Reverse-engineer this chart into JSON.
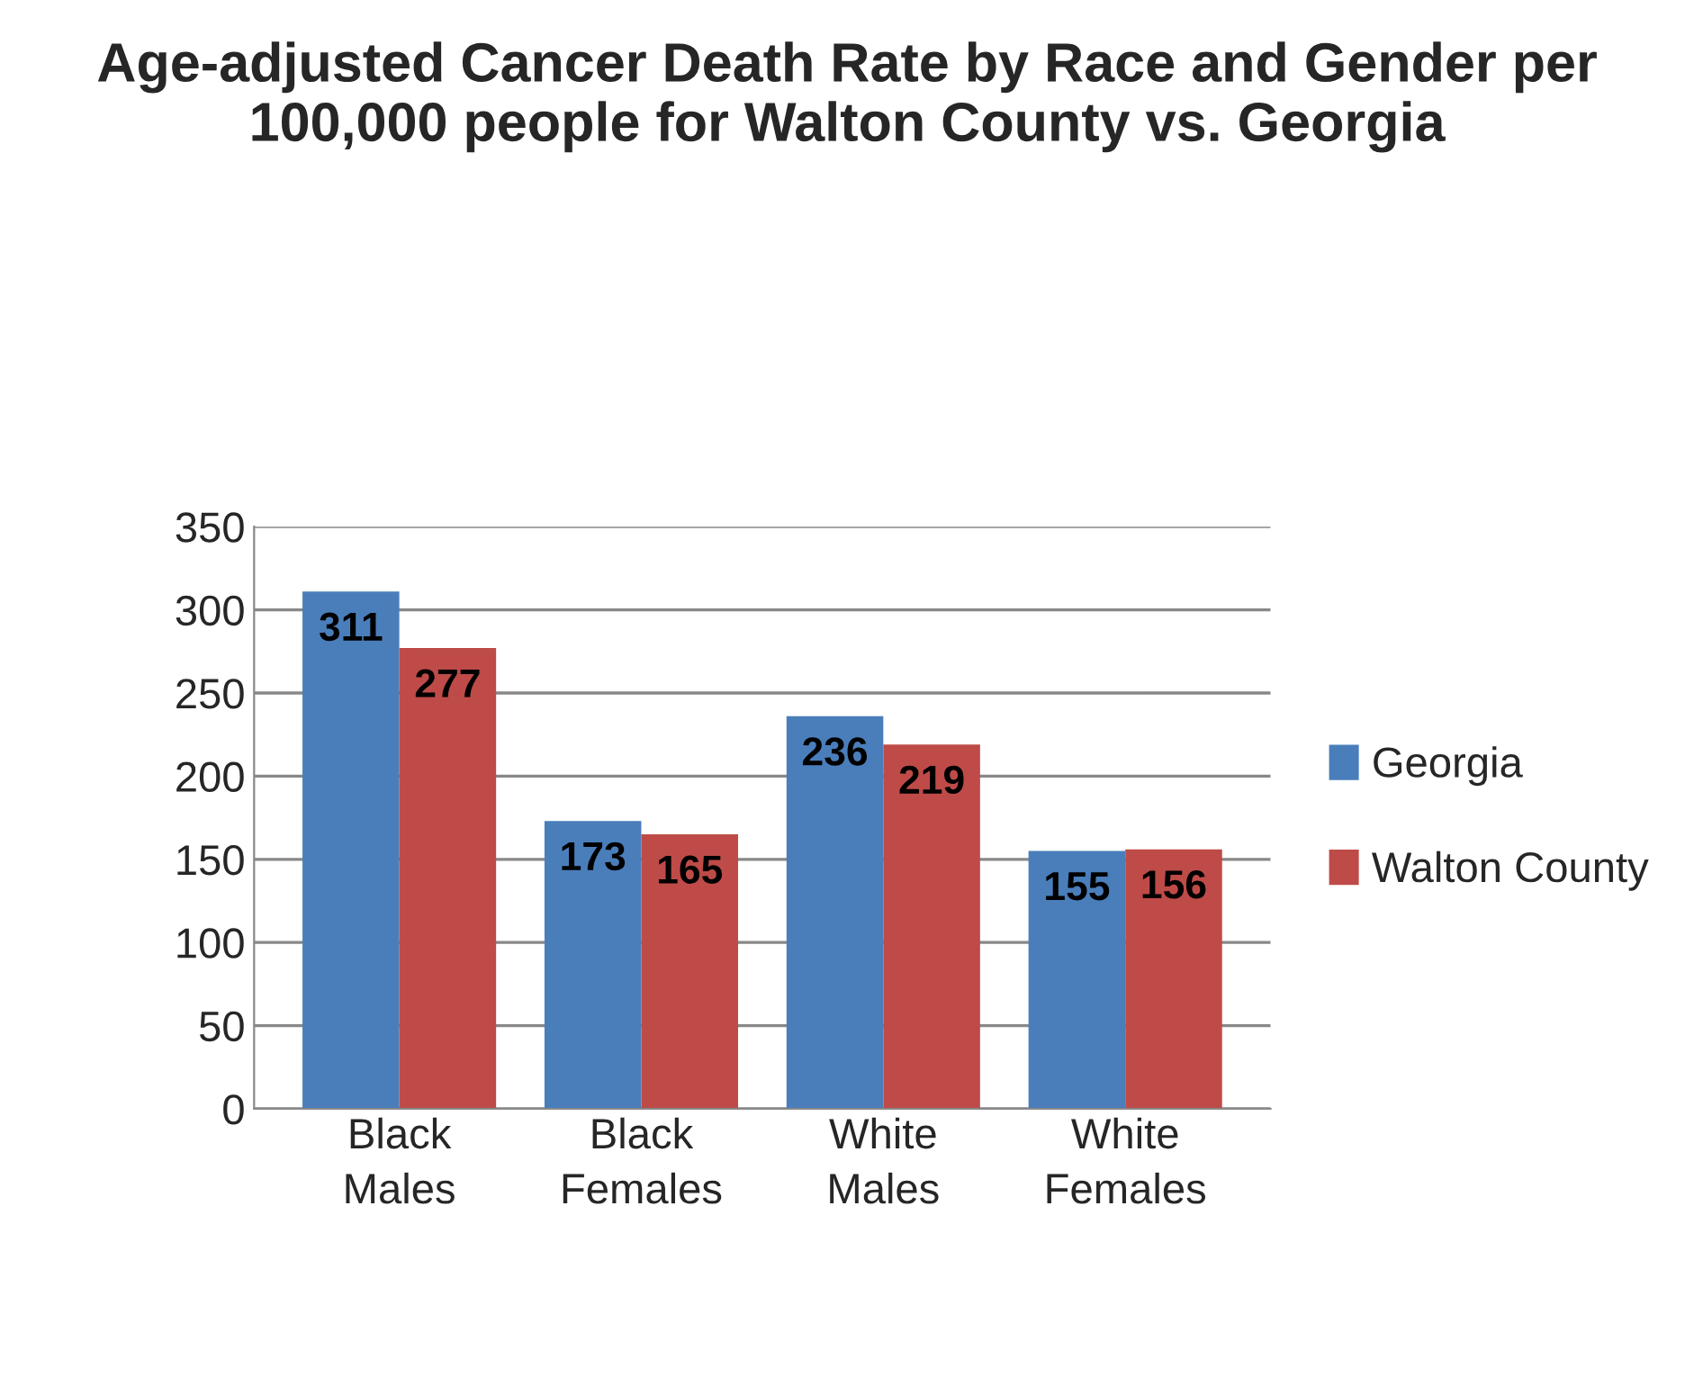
{
  "chart_data": {
    "type": "bar",
    "title": "Age-adjusted Cancer Death Rate by Race and Gender per 100,000 people for Walton County vs. Georgia",
    "categories": [
      "Black\nMales",
      "Black\nFemales",
      "White\nMales",
      "White\nFemales"
    ],
    "series": [
      {
        "name": "Georgia",
        "color": "#4a7ebb",
        "values": [
          311,
          173,
          236,
          155
        ]
      },
      {
        "name": "Walton County",
        "color": "#be4b48",
        "values": [
          277,
          165,
          219,
          156
        ]
      }
    ],
    "ylim": [
      0,
      350
    ],
    "yticks": [
      0,
      50,
      100,
      150,
      200,
      250,
      300,
      350
    ],
    "grid": "y",
    "legend": "right",
    "data_labels": true
  }
}
